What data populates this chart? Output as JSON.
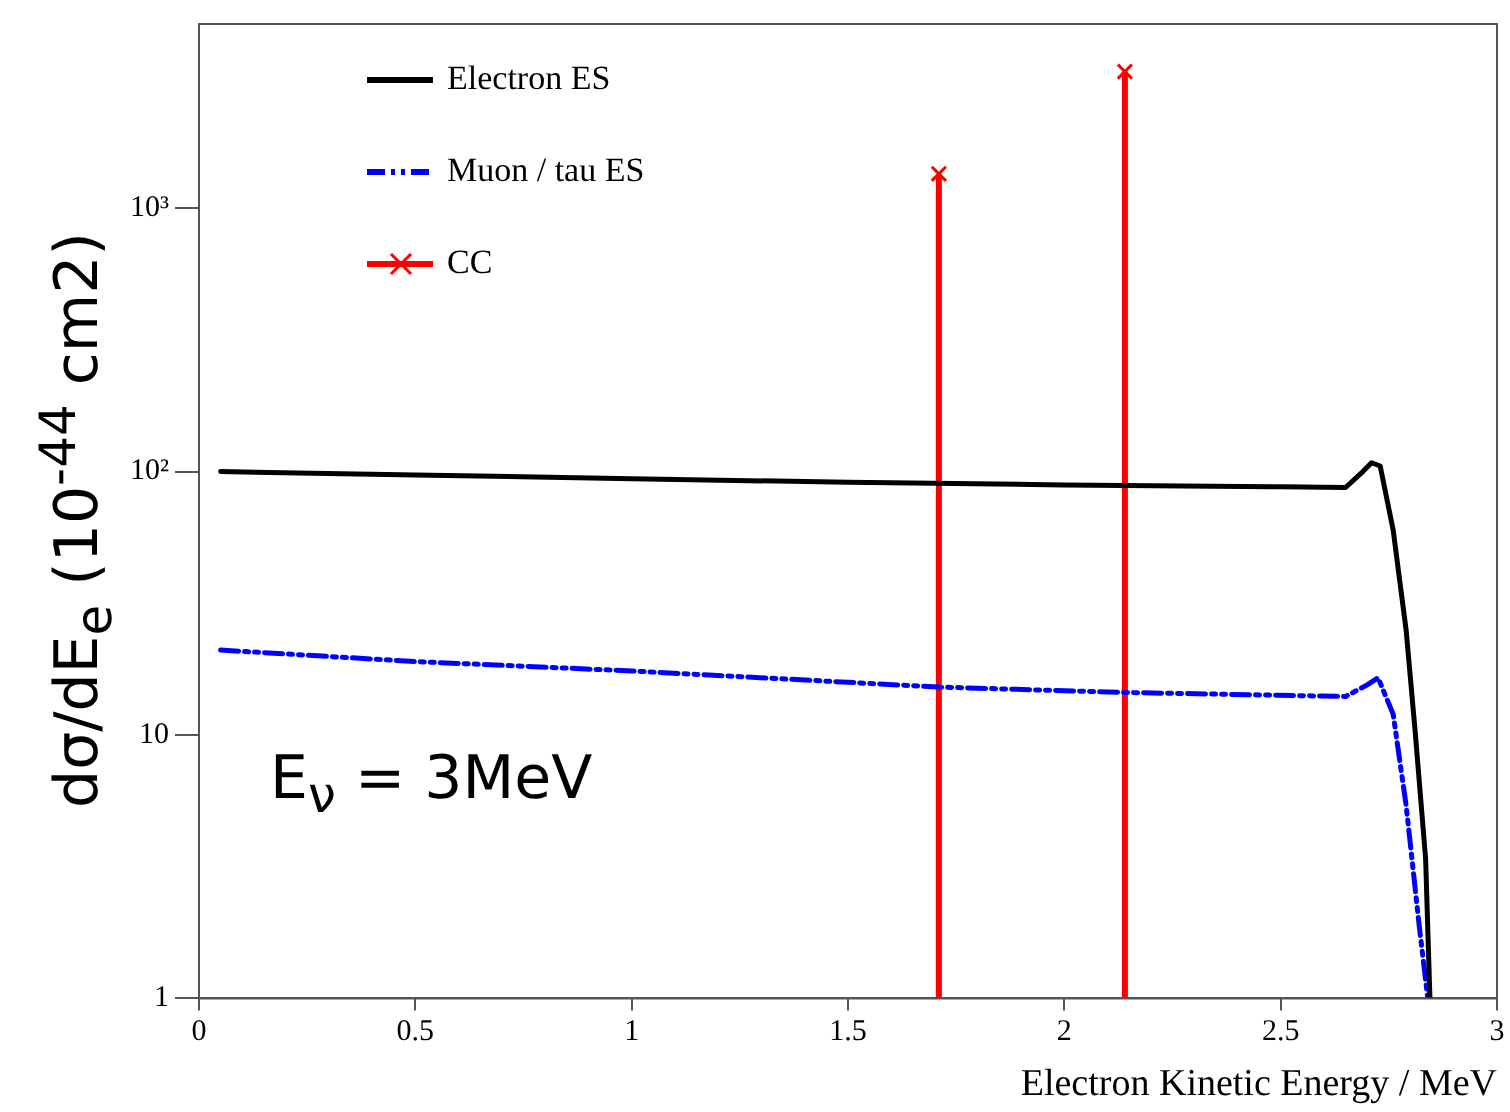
{
  "chart_data": {
    "type": "line",
    "xlabel": "Electron Kinetic Energy / MeV",
    "ylabel": "dσ/dE$_{e}$ (10$^{-44}$ cm2)",
    "annotations": [
      "E$_{ν}$ = 3MeV"
    ],
    "xlim": [
      0,
      3
    ],
    "xticks": [
      0,
      0.5,
      1,
      1.5,
      2,
      2.5,
      3
    ],
    "ylim": [
      1,
      5000
    ],
    "yticks": [
      1,
      10,
      {
        "value": 100,
        "label": "10²"
      },
      {
        "value": 1000,
        "label": "10³"
      }
    ],
    "log": "y",
    "grid": false,
    "legend": "top left",
    "series": [
      {
        "name": "Electron ES",
        "color": "#000000",
        "line_style": "solid",
        "marker": "none",
        "x": [
          0.05,
          0.5,
          1,
          1.5,
          2,
          2.5,
          2.65,
          2.69,
          2.71,
          2.73,
          2.76,
          2.79,
          2.81,
          2.835,
          2.845
        ],
        "values": [
          100,
          97,
          94,
          91,
          89,
          87.5,
          87,
          100,
          108,
          105,
          60,
          25,
          10.7,
          3.4,
          1
        ]
      },
      {
        "name": "Muon / tau ES",
        "color": "#0000ff",
        "line_style": "dashed",
        "marker": "none",
        "x": [
          0.05,
          0.5,
          1,
          1.71,
          2.14,
          2.65,
          2.7,
          2.725,
          2.76,
          2.79,
          2.82,
          2.84
        ],
        "values": [
          21,
          19,
          17.5,
          15.2,
          14.5,
          14,
          15.5,
          16.5,
          12,
          5.4,
          1.9,
          1
        ]
      },
      {
        "name": "CC",
        "type": "lollipop",
        "color": "#ff0000",
        "marker": "cross",
        "x": [
          1.71,
          2.14
        ],
        "values": [
          1350,
          3300
        ]
      }
    ]
  }
}
